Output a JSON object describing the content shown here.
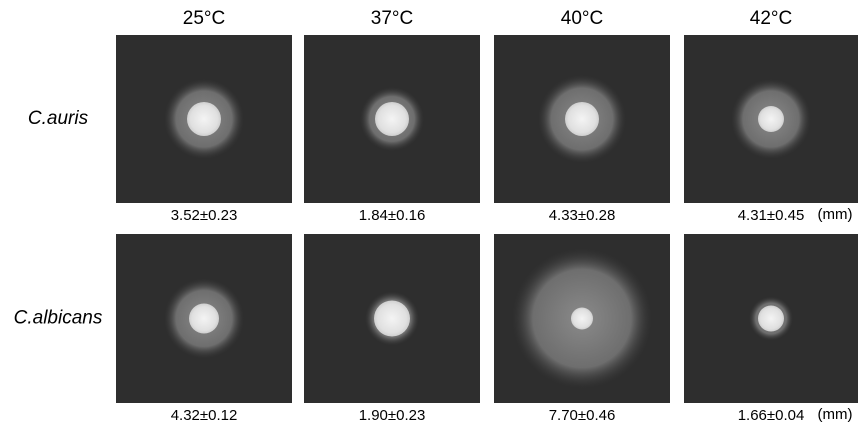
{
  "columns": [
    "25°C",
    "37°C",
    "40°C",
    "42°C"
  ],
  "rows": [
    {
      "label": "C.auris",
      "measurements": [
        "3.52±0.23",
        "1.84±0.16",
        "4.33±0.28",
        "4.31±0.45"
      ],
      "unit": "(mm)"
    },
    {
      "label": "C.albicans",
      "measurements": [
        "4.32±0.12",
        "1.90±0.23",
        "7.70±0.46",
        "1.66±0.04"
      ],
      "unit": "(mm)"
    }
  ]
}
